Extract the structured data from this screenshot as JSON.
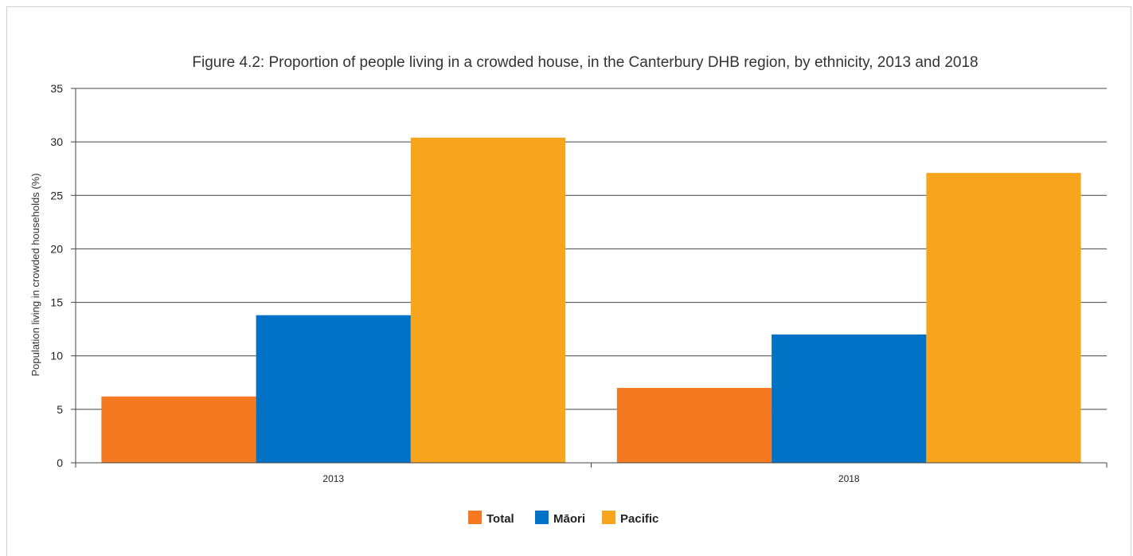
{
  "chart_data": {
    "type": "bar",
    "title": "Figure 4.2: Proportion of people living in a crowded house, in the Canterbury DHB region, by ethnicity, 2013 and 2018",
    "xlabel": "",
    "ylabel": "Population living in crowded households (%)",
    "categories": [
      "2013",
      "2018"
    ],
    "series": [
      {
        "name": "Total",
        "color": "#f47920",
        "values": [
          6.2,
          7.0
        ]
      },
      {
        "name": "Māori",
        "color": "#0072c6",
        "values": [
          13.8,
          12.0
        ]
      },
      {
        "name": "Pacific",
        "color": "#f7a51c",
        "values": [
          30.4,
          27.1
        ]
      }
    ],
    "ylim": [
      0,
      35
    ],
    "yticks": [
      "0",
      "5",
      "10",
      "15",
      "20",
      "25",
      "30",
      "35"
    ],
    "grid": true,
    "legend_position": "bottom"
  }
}
